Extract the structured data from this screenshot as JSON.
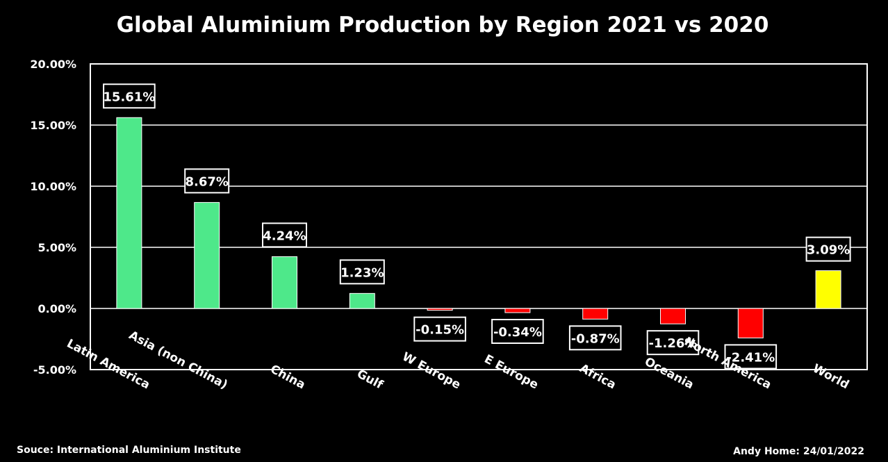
{
  "chart_data": {
    "type": "bar",
    "title": "Global Aluminium Production by Region 2021 vs 2020",
    "categories": [
      "Latin America",
      "Asia (non China)",
      "China",
      "Gulf",
      "W Europe",
      "E Europe",
      "Africa",
      "Oceania",
      "North America",
      "World"
    ],
    "values": [
      15.61,
      8.67,
      4.24,
      1.23,
      -0.15,
      -0.34,
      -0.87,
      -1.26,
      -2.41,
      3.09
    ],
    "data_labels": [
      "15.61%",
      "8.67%",
      "4.24%",
      "1.23%",
      "-0.15%",
      "-0.34%",
      "-0.87%",
      "-1.26%",
      "-2.41%",
      "3.09%"
    ],
    "bar_colors": [
      "#4ee88a",
      "#4ee88a",
      "#4ee88a",
      "#4ee88a",
      "#ff0000",
      "#ff0000",
      "#ff0000",
      "#ff0000",
      "#ff0000",
      "#ffff00"
    ],
    "ylim": [
      -5,
      20
    ],
    "yticks": [
      20,
      15,
      10,
      5,
      0,
      -5
    ],
    "ytick_labels": [
      "20.00%",
      "15.00%",
      "10.00%",
      "5.00%",
      "0.00%",
      "-5.00%"
    ],
    "grid": true,
    "legend": "none",
    "xlabel": "",
    "ylabel": ""
  },
  "footer": {
    "source": "Souce: International Aluminium Institute",
    "credit": "Andy Home: 24/01/2022"
  },
  "colors": {
    "background": "#000000",
    "positive": "#4ee88a",
    "negative": "#ff0000",
    "world": "#ffff00",
    "grid": "#ffffff"
  }
}
